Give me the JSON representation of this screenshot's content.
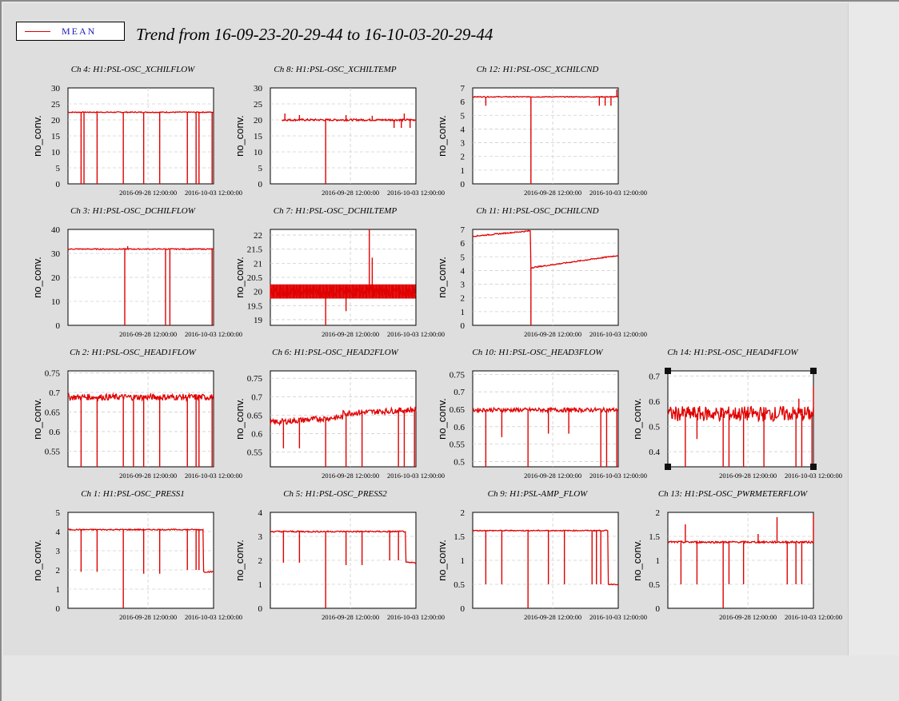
{
  "page": {
    "title": "Trend from 16-09-23-20-29-44 to 16-10-03-20-29-44",
    "legend": {
      "label": "MEAN",
      "color": "#e00000"
    }
  },
  "chart_data": [
    {
      "type": "line",
      "title": "Ch 4: H1:PSL-OSC_XCHILFLOW",
      "ylabel": "no_conv.",
      "yticks": [
        "0",
        "5",
        "10",
        "15",
        "20",
        "25",
        "30"
      ],
      "ylim": [
        0,
        30
      ],
      "xticks": [
        "2016-09-28 12:00:00",
        "2016-10-03 12:00:00"
      ],
      "series": [
        {
          "color": "#e00000",
          "baseline": 22.4,
          "noise": 0.15,
          "dips": [
            {
              "t": 0.09,
              "v": 0
            },
            {
              "t": 0.11,
              "v": 0
            },
            {
              "t": 0.2,
              "v": 0
            },
            {
              "t": 0.38,
              "v": 0
            },
            {
              "t": 0.52,
              "v": 0
            },
            {
              "t": 0.63,
              "v": 0
            },
            {
              "t": 0.82,
              "v": 0
            },
            {
              "t": 0.88,
              "v": 0
            },
            {
              "t": 0.9,
              "v": 0
            },
            {
              "t": 0.99,
              "v": 0
            }
          ]
        }
      ]
    },
    {
      "type": "line",
      "title": "Ch 8: H1:PSL-OSC_XCHILTEMP",
      "ylabel": "no_conv.",
      "yticks": [
        "0",
        "5",
        "10",
        "15",
        "20",
        "25",
        "30"
      ],
      "ylim": [
        0,
        30
      ],
      "xticks": [
        "2016-09-28 12:00:00",
        "2016-10-03 12:00:00"
      ],
      "series": [
        {
          "color": "#e00000",
          "baseline": 20.0,
          "noise": 0.3,
          "start": 0.08,
          "dips": [
            {
              "t": 0.38,
              "v": 0
            },
            {
              "t": 0.85,
              "v": 17.5
            },
            {
              "t": 0.9,
              "v": 17.5
            },
            {
              "t": 0.96,
              "v": 17.5
            }
          ],
          "spikes": [
            {
              "t": 0.1,
              "v": 22
            },
            {
              "t": 0.2,
              "v": 21.5
            },
            {
              "t": 0.52,
              "v": 21.5
            },
            {
              "t": 0.7,
              "v": 21.3
            },
            {
              "t": 0.92,
              "v": 22
            }
          ]
        }
      ]
    },
    {
      "type": "line",
      "title": "Ch 12: H1:PSL-OSC_XCHILCND",
      "ylabel": "no_conv.",
      "yticks": [
        "0",
        "1",
        "2",
        "3",
        "4",
        "5",
        "6",
        "7"
      ],
      "ylim": [
        0,
        7
      ],
      "xticks": [
        "2016-09-28 12:00:00",
        "2016-10-03 12:00:00"
      ],
      "series": [
        {
          "color": "#e00000",
          "baseline": 6.35,
          "noise": 0.03,
          "dips": [
            {
              "t": 0.09,
              "v": 5.7
            },
            {
              "t": 0.4,
              "v": 0
            },
            {
              "t": 0.87,
              "v": 5.7
            },
            {
              "t": 0.91,
              "v": 5.7
            },
            {
              "t": 0.95,
              "v": 5.7
            }
          ],
          "spikes": [
            {
              "t": 0.99,
              "v": 6.9
            }
          ]
        }
      ]
    },
    {
      "type": "line",
      "title": "Ch 3: H1:PSL-OSC_DCHILFLOW",
      "ylabel": "no_conv.",
      "yticks": [
        "0",
        "10",
        "20",
        "30",
        "40"
      ],
      "ylim": [
        0,
        40
      ],
      "xticks": [
        "2016-09-28 12:00:00",
        "2016-10-03 12:00:00"
      ],
      "series": [
        {
          "color": "#e00000",
          "baseline": 31.8,
          "noise": 0.2,
          "dips": [
            {
              "t": 0.39,
              "v": 0
            },
            {
              "t": 0.67,
              "v": 0
            },
            {
              "t": 0.7,
              "v": 0
            },
            {
              "t": 0.99,
              "v": 0
            }
          ],
          "spikes": [
            {
              "t": 0.41,
              "v": 33
            }
          ]
        }
      ]
    },
    {
      "type": "line",
      "title": "Ch 7: H1:PSL-OSC_DCHILTEMP",
      "ylabel": "no_conv.",
      "yticks": [
        "19",
        "19.5",
        "20",
        "20.5",
        "21",
        "21.5",
        "22"
      ],
      "ylim": [
        18.8,
        22.2
      ],
      "xticks": [
        "2016-09-28 12:00:00",
        "2016-10-03 12:00:00"
      ],
      "series": [
        {
          "color": "#e00000",
          "baseline": 20.0,
          "noise": 0.18,
          "band": true,
          "dips": [
            {
              "t": 0.38,
              "v": 18.8
            },
            {
              "t": 0.52,
              "v": 19.3
            }
          ],
          "spikes": [
            {
              "t": 0.68,
              "v": 22.2
            },
            {
              "t": 0.7,
              "v": 21.2
            }
          ]
        }
      ]
    },
    {
      "type": "line",
      "title": "Ch 11: H1:PSL-OSC_DCHILCND",
      "ylabel": "no_conv.",
      "yticks": [
        "0",
        "1",
        "2",
        "3",
        "4",
        "5",
        "6",
        "7"
      ],
      "ylim": [
        0,
        7
      ],
      "xticks": [
        "2016-09-28 12:00:00",
        "2016-10-03 12:00:00"
      ],
      "series": [
        {
          "color": "#e00000",
          "ramp": [
            6.5,
            6.9,
            4.2,
            5.1
          ],
          "rampbreak": 0.4,
          "noise": 0.04,
          "dips": [
            {
              "t": 0.4,
              "v": 0
            }
          ]
        }
      ]
    },
    {
      "type": "line",
      "title": "Ch 2: H1:PSL-OSC_HEAD1FLOW",
      "ylabel": "no_conv.",
      "yticks": [
        "0.55",
        "0.6",
        "0.65",
        "0.7",
        "0.75"
      ],
      "ylim": [
        0.51,
        0.755
      ],
      "xticks": [
        "2016-09-28 12:00:00",
        "2016-10-03 12:00:00"
      ],
      "series": [
        {
          "color": "#e00000",
          "baseline": 0.688,
          "noise": 0.008,
          "dips": [
            {
              "t": 0.09,
              "v": 0.51
            },
            {
              "t": 0.2,
              "v": 0.51
            },
            {
              "t": 0.38,
              "v": 0.51
            },
            {
              "t": 0.45,
              "v": 0.51
            },
            {
              "t": 0.52,
              "v": 0.51
            },
            {
              "t": 0.63,
              "v": 0.51
            },
            {
              "t": 0.82,
              "v": 0.51
            },
            {
              "t": 0.88,
              "v": 0.51
            },
            {
              "t": 0.9,
              "v": 0.51
            },
            {
              "t": 0.99,
              "v": 0.51
            }
          ]
        }
      ]
    },
    {
      "type": "line",
      "title": "Ch 6: H1:PSL-OSC_HEAD2FLOW",
      "ylabel": "no_conv.",
      "yticks": [
        "0.55",
        "0.6",
        "0.65",
        "0.7",
        "0.75"
      ],
      "ylim": [
        0.51,
        0.77
      ],
      "xticks": [
        "2016-09-28 12:00:00",
        "2016-10-03 12:00:00"
      ],
      "series": [
        {
          "color": "#e00000",
          "ramp": [
            0.63,
            0.645,
            0.655,
            0.665
          ],
          "rampbreak": 0.5,
          "noise": 0.008,
          "dips": [
            {
              "t": 0.09,
              "v": 0.56
            },
            {
              "t": 0.2,
              "v": 0.56
            },
            {
              "t": 0.38,
              "v": 0.51
            },
            {
              "t": 0.52,
              "v": 0.51
            },
            {
              "t": 0.63,
              "v": 0.51
            },
            {
              "t": 0.88,
              "v": 0.51
            },
            {
              "t": 0.92,
              "v": 0.51
            },
            {
              "t": 0.99,
              "v": 0.51
            }
          ]
        }
      ]
    },
    {
      "type": "line",
      "title": "Ch 10: H1:PSL-OSC_HEAD3FLOW",
      "ylabel": "no_conv.",
      "yticks": [
        "0.5",
        "0.55",
        "0.6",
        "0.65",
        "0.7",
        "0.75"
      ],
      "ylim": [
        0.485,
        0.76
      ],
      "xticks": [
        "2016-09-28 12:00:00",
        "2016-10-03 12:00:00"
      ],
      "series": [
        {
          "color": "#e00000",
          "baseline": 0.648,
          "noise": 0.006,
          "dips": [
            {
              "t": 0.09,
              "v": 0.485
            },
            {
              "t": 0.2,
              "v": 0.57
            },
            {
              "t": 0.38,
              "v": 0.485
            },
            {
              "t": 0.52,
              "v": 0.58
            },
            {
              "t": 0.66,
              "v": 0.58
            },
            {
              "t": 0.88,
              "v": 0.485
            },
            {
              "t": 0.92,
              "v": 0.485
            },
            {
              "t": 0.99,
              "v": 0.485
            }
          ]
        }
      ]
    },
    {
      "type": "line",
      "title": "Ch 14: H1:PSL-OSC_HEAD4FLOW",
      "ylabel": "no_conv.",
      "yticks": [
        "0.4",
        "0.5",
        "0.6",
        "0.7"
      ],
      "ylim": [
        0.34,
        0.72
      ],
      "xticks": [
        "2016-09-28 12:00:00",
        "2016-10-03 12:00:00"
      ],
      "series": [
        {
          "color": "#e00000",
          "baseline": 0.55,
          "noise": 0.03,
          "dips": [
            {
              "t": 0.12,
              "v": 0.34
            },
            {
              "t": 0.2,
              "v": 0.45
            },
            {
              "t": 0.38,
              "v": 0.34
            },
            {
              "t": 0.42,
              "v": 0.34
            },
            {
              "t": 0.52,
              "v": 0.34
            },
            {
              "t": 0.66,
              "v": 0.34
            },
            {
              "t": 0.88,
              "v": 0.34
            },
            {
              "t": 0.92,
              "v": 0.34
            },
            {
              "t": 0.99,
              "v": 0.34
            }
          ],
          "spikes": [
            {
              "t": 0.9,
              "v": 0.61
            },
            {
              "t": 1.0,
              "v": 0.66
            }
          ]
        }
      ]
    },
    {
      "type": "line",
      "title": "Ch 1: H1:PSL-OSC_PRESS1",
      "ylabel": "no_conv.",
      "yticks": [
        "0",
        "1",
        "2",
        "3",
        "4",
        "5"
      ],
      "ylim": [
        0,
        5
      ],
      "xticks": [
        "2016-09-28 12:00:00",
        "2016-10-03 12:00:00"
      ],
      "series": [
        {
          "color": "#e00000",
          "baseline": 4.1,
          "noise": 0.03,
          "dips": [
            {
              "t": 0.09,
              "v": 1.9
            },
            {
              "t": 0.2,
              "v": 1.9
            },
            {
              "t": 0.38,
              "v": 0
            },
            {
              "t": 0.52,
              "v": 1.8
            },
            {
              "t": 0.63,
              "v": 1.8
            },
            {
              "t": 0.82,
              "v": 2.0
            },
            {
              "t": 0.88,
              "v": 2.0
            },
            {
              "t": 0.9,
              "v": 2.0
            }
          ],
          "tail": 1.9
        }
      ]
    },
    {
      "type": "line",
      "title": "Ch 5: H1:PSL-OSC_PRESS2",
      "ylabel": "no_conv.",
      "yticks": [
        "0",
        "1",
        "2",
        "3",
        "4"
      ],
      "ylim": [
        0,
        4
      ],
      "xticks": [
        "2016-09-28 12:00:00",
        "2016-10-03 12:00:00"
      ],
      "series": [
        {
          "color": "#e00000",
          "baseline": 3.2,
          "noise": 0.03,
          "dips": [
            {
              "t": 0.09,
              "v": 1.9
            },
            {
              "t": 0.2,
              "v": 1.9
            },
            {
              "t": 0.38,
              "v": 0
            },
            {
              "t": 0.52,
              "v": 1.8
            },
            {
              "t": 0.63,
              "v": 1.8
            },
            {
              "t": 0.82,
              "v": 2.0
            },
            {
              "t": 0.88,
              "v": 2.0
            }
          ],
          "tail": 1.9
        }
      ]
    },
    {
      "type": "line",
      "title": "Ch 9: H1:PSL-AMP_FLOW",
      "ylabel": "no_conv.",
      "yticks": [
        "0",
        "0.5",
        "1",
        "1.5",
        "2"
      ],
      "ylim": [
        0,
        2
      ],
      "xticks": [
        "2016-09-28 12:00:00",
        "2016-10-03 12:00:00"
      ],
      "series": [
        {
          "color": "#e00000",
          "baseline": 1.62,
          "noise": 0.01,
          "dips": [
            {
              "t": 0.09,
              "v": 0.5
            },
            {
              "t": 0.2,
              "v": 0.5
            },
            {
              "t": 0.38,
              "v": 0
            },
            {
              "t": 0.52,
              "v": 0.5
            },
            {
              "t": 0.63,
              "v": 0.5
            },
            {
              "t": 0.82,
              "v": 0.5
            },
            {
              "t": 0.85,
              "v": 0.5
            },
            {
              "t": 0.88,
              "v": 0.5
            }
          ],
          "tail": 0.5
        }
      ]
    },
    {
      "type": "line",
      "title": "Ch 13: H1:PSL-OSC_PWRMETERFLOW",
      "ylabel": "no_conv.",
      "yticks": [
        "0",
        "0.5",
        "1",
        "1.5",
        "2"
      ],
      "ylim": [
        0,
        2
      ],
      "xticks": [
        "2016-09-28 12:00:00",
        "2016-10-03 12:00:00"
      ],
      "series": [
        {
          "color": "#e00000",
          "baseline": 1.38,
          "noise": 0.02,
          "dips": [
            {
              "t": 0.09,
              "v": 0.5
            },
            {
              "t": 0.2,
              "v": 0.5
            },
            {
              "t": 0.38,
              "v": 0
            },
            {
              "t": 0.42,
              "v": 0.5
            },
            {
              "t": 0.52,
              "v": 0.5
            },
            {
              "t": 0.82,
              "v": 0.5
            },
            {
              "t": 0.88,
              "v": 0.5
            },
            {
              "t": 0.92,
              "v": 0.5
            }
          ],
          "spikes": [
            {
              "t": 0.12,
              "v": 1.75
            },
            {
              "t": 0.62,
              "v": 1.55
            },
            {
              "t": 0.75,
              "v": 1.9
            },
            {
              "t": 1.0,
              "v": 1.95
            }
          ]
        }
      ]
    }
  ]
}
